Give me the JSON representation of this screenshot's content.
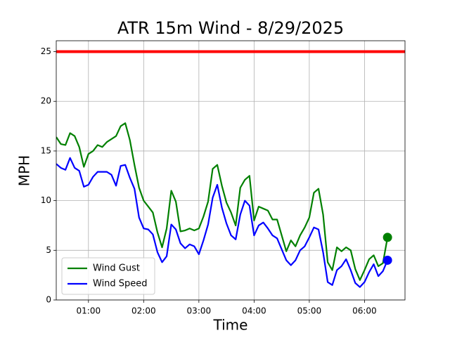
{
  "chart_data": {
    "type": "line",
    "title": "ATR 15m Wind - 8/29/2025",
    "xlabel": "Time",
    "ylabel": "MPH",
    "x": [
      "00:25",
      "00:30",
      "00:35",
      "00:40",
      "00:45",
      "00:50",
      "00:55",
      "01:00",
      "01:05",
      "01:10",
      "01:15",
      "01:20",
      "01:25",
      "01:30",
      "01:35",
      "01:40",
      "01:45",
      "01:50",
      "01:55",
      "02:00",
      "02:05",
      "02:10",
      "02:15",
      "02:20",
      "02:25",
      "02:30",
      "02:35",
      "02:40",
      "02:45",
      "02:50",
      "02:55",
      "03:00",
      "03:05",
      "03:10",
      "03:15",
      "03:20",
      "03:25",
      "03:30",
      "03:35",
      "03:40",
      "03:45",
      "03:50",
      "03:55",
      "04:00",
      "04:05",
      "04:10",
      "04:15",
      "04:20",
      "04:25",
      "04:30",
      "04:35",
      "04:40",
      "04:45",
      "04:50",
      "04:55",
      "05:00",
      "05:05",
      "05:10",
      "05:15",
      "05:20",
      "05:25",
      "05:30",
      "05:35",
      "05:40",
      "05:45",
      "05:50",
      "05:55",
      "06:00",
      "06:05",
      "06:10",
      "06:15",
      "06:20",
      "06:25"
    ],
    "series": [
      {
        "name": "Wind Gust",
        "color": "#008000",
        "values": [
          16.4,
          15.7,
          15.6,
          16.8,
          16.5,
          15.4,
          13.4,
          14.7,
          15.0,
          15.6,
          15.4,
          15.9,
          16.2,
          16.5,
          17.5,
          17.8,
          16.1,
          13.6,
          11.3,
          10.0,
          9.4,
          8.8,
          6.8,
          5.3,
          7.2,
          11.0,
          9.9,
          6.9,
          7.0,
          7.2,
          7.0,
          7.2,
          8.4,
          9.9,
          13.2,
          13.6,
          11.5,
          9.8,
          8.8,
          7.5,
          11.3,
          12.1,
          12.5,
          8.0,
          9.4,
          9.2,
          9.0,
          8.1,
          8.1,
          6.5,
          4.9,
          6.0,
          5.4,
          6.5,
          7.3,
          8.3,
          10.8,
          11.2,
          8.6,
          3.8,
          3.0,
          5.3,
          4.9,
          5.3,
          5.0,
          3.1,
          2.0,
          3.0,
          4.1,
          4.5,
          3.4,
          3.7,
          6.3
        ]
      },
      {
        "name": "Wind Speed",
        "color": "#0000ff",
        "values": [
          13.7,
          13.3,
          13.1,
          14.3,
          13.3,
          13.0,
          11.4,
          11.6,
          12.4,
          12.9,
          12.9,
          12.9,
          12.6,
          11.5,
          13.5,
          13.6,
          12.3,
          11.2,
          8.3,
          7.2,
          7.1,
          6.6,
          4.8,
          3.8,
          4.4,
          7.6,
          7.1,
          5.7,
          5.2,
          5.6,
          5.4,
          4.6,
          6.0,
          7.6,
          10.3,
          11.6,
          9.3,
          7.7,
          6.5,
          6.1,
          8.6,
          10.0,
          9.5,
          6.5,
          7.5,
          7.8,
          7.2,
          6.5,
          6.2,
          5.1,
          4.0,
          3.5,
          4.0,
          5.0,
          5.4,
          6.3,
          7.3,
          7.1,
          4.8,
          1.8,
          1.5,
          3.0,
          3.4,
          4.1,
          3.0,
          1.7,
          1.3,
          1.8,
          2.8,
          3.6,
          2.4,
          2.9,
          4.0
        ]
      }
    ],
    "threshold": {
      "value": 25,
      "color": "#ff0000"
    },
    "last_point_marker": true,
    "xlim": [
      "00:25",
      "06:44"
    ],
    "xticks": [
      "01:00",
      "02:00",
      "03:00",
      "04:00",
      "05:00",
      "06:00"
    ],
    "ylim": [
      0,
      26.1
    ],
    "yticks": [
      0,
      5,
      10,
      15,
      20,
      25
    ],
    "grid": true,
    "legend": "lower left"
  }
}
